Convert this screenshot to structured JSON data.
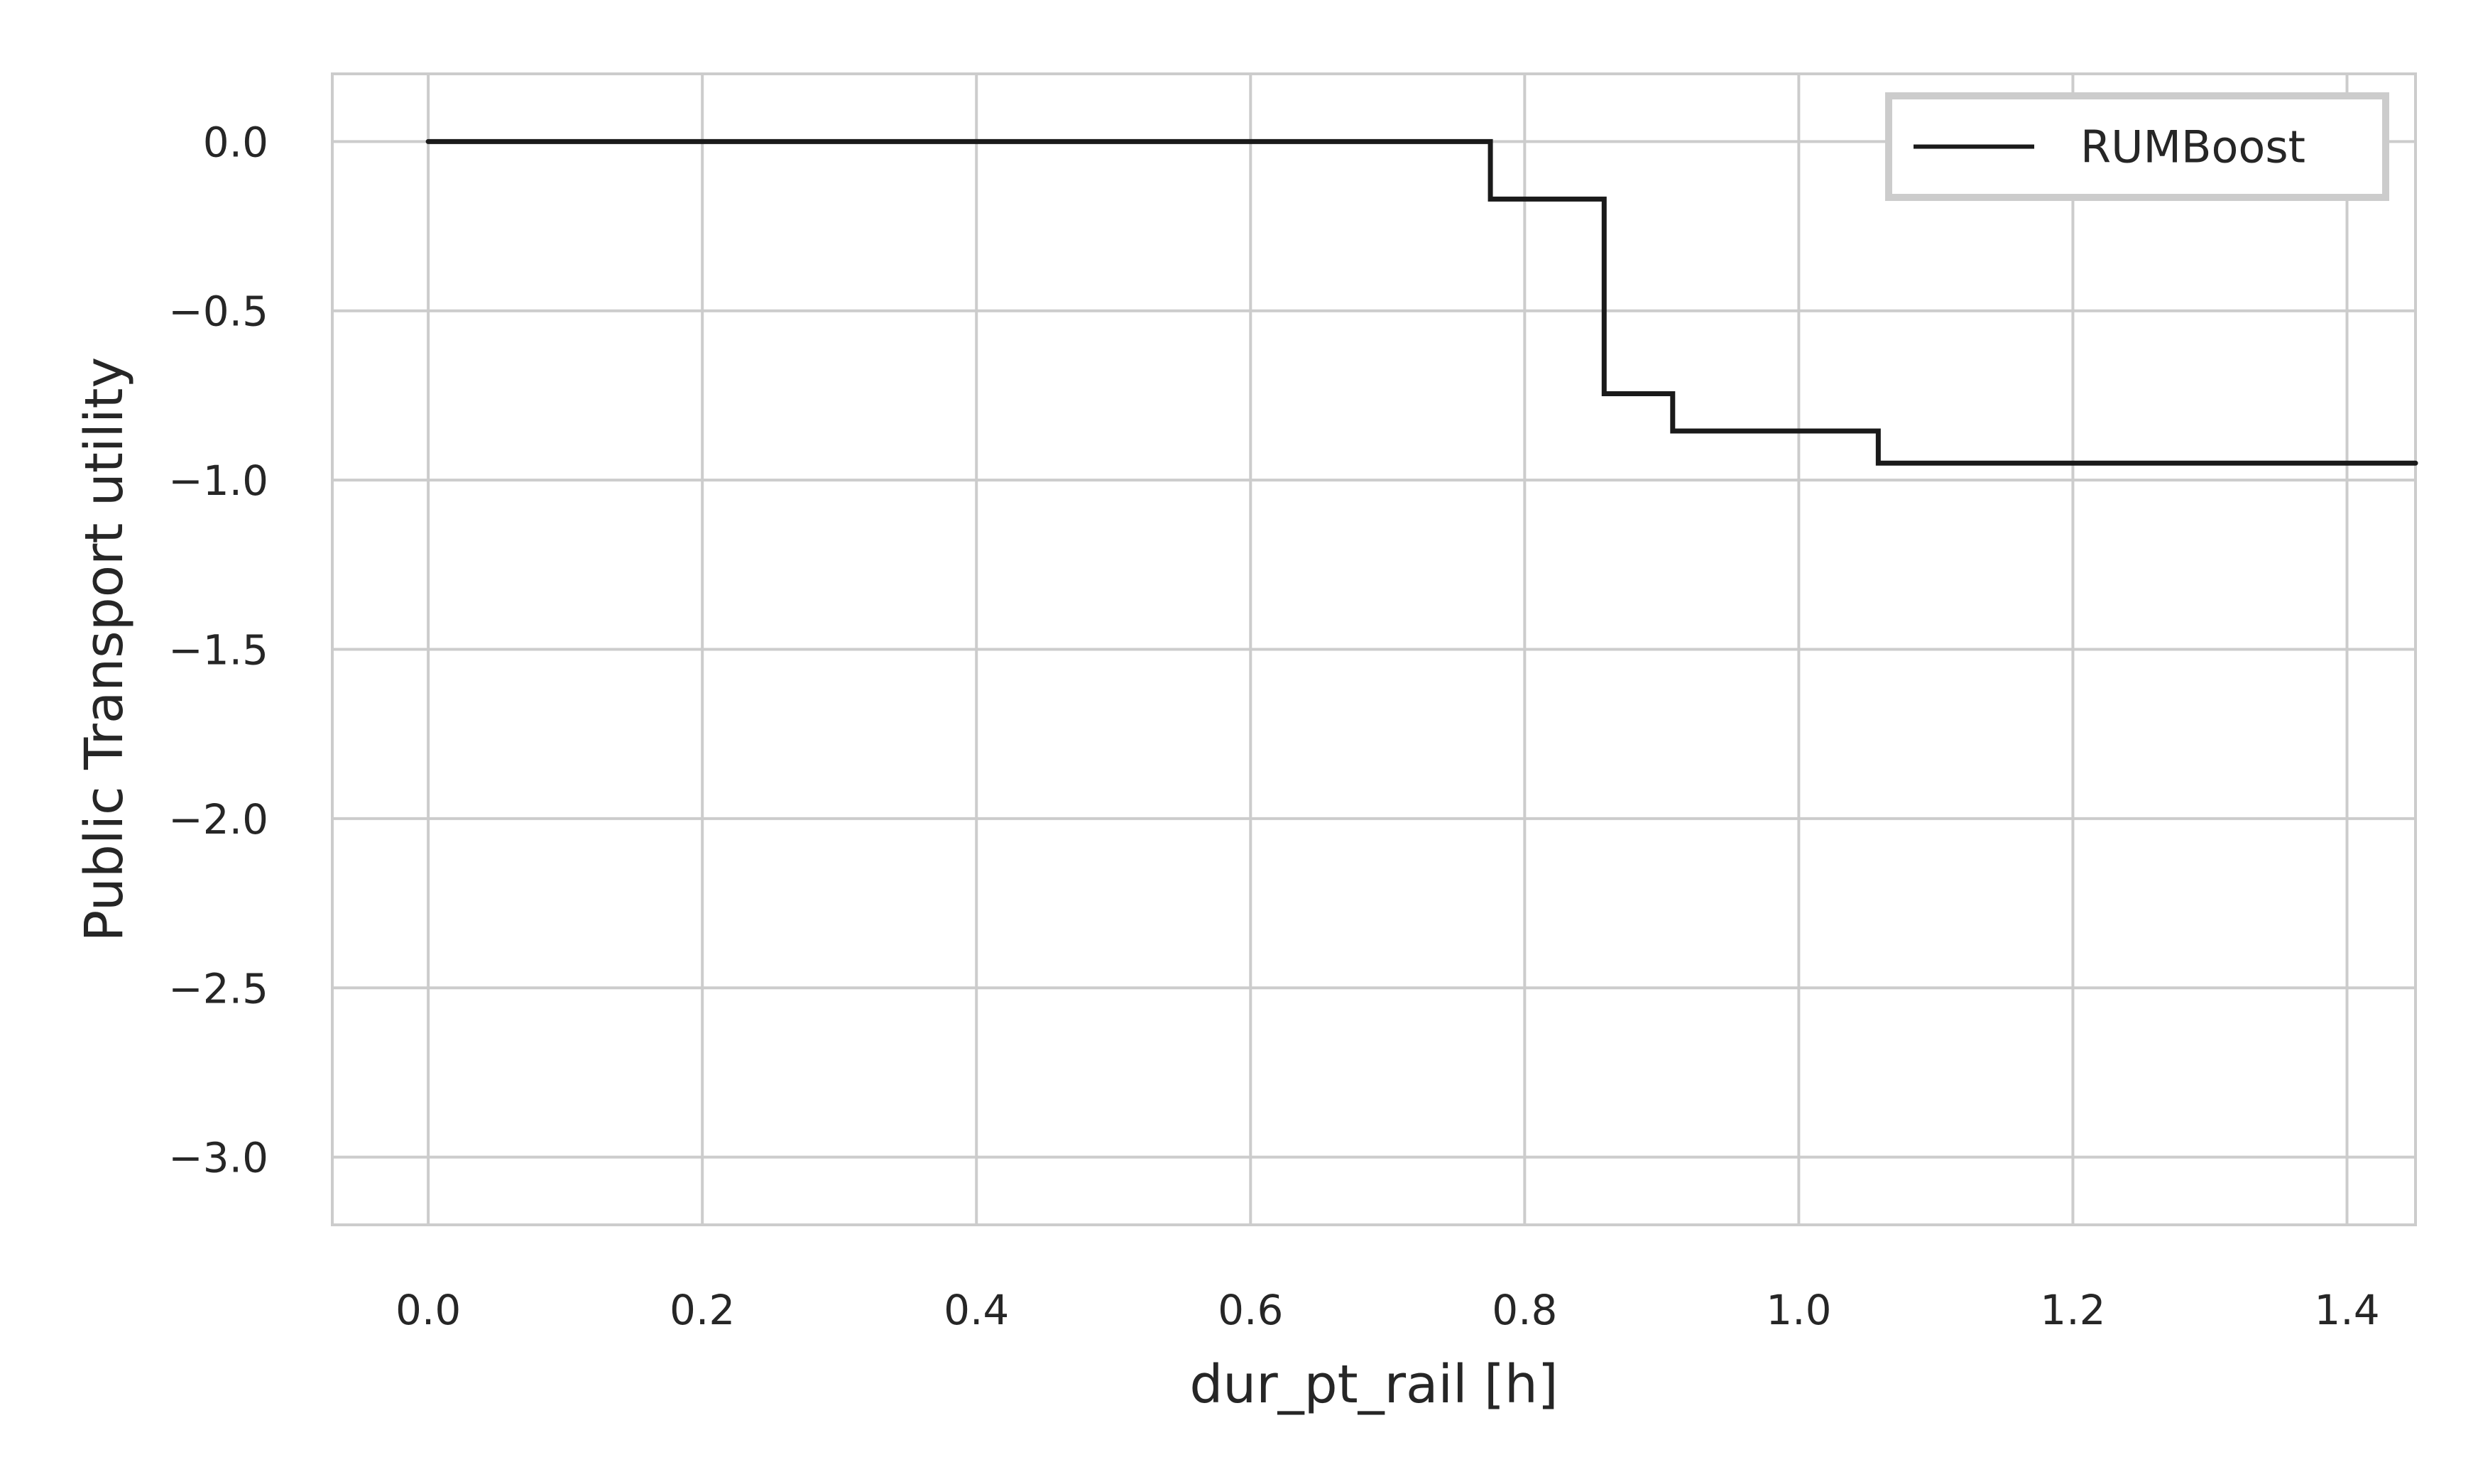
{
  "chart_data": {
    "type": "line",
    "step": "post",
    "title": "",
    "xlabel": "dur_pt_rail [h]",
    "ylabel": "Public Transport utility",
    "xlim": [
      -0.07,
      1.45
    ],
    "ylim": [
      -3.2,
      0.2
    ],
    "xticks": [
      0.0,
      0.2,
      0.4,
      0.6,
      0.8,
      1.0,
      1.2,
      1.4
    ],
    "xtick_labels": [
      "0.0",
      "0.2",
      "0.4",
      "0.6",
      "0.8",
      "1.0",
      "1.2",
      "1.4"
    ],
    "yticks": [
      0.0,
      -0.5,
      -1.0,
      -1.5,
      -2.0,
      -2.5,
      -3.0
    ],
    "ytick_labels": [
      "0.0",
      "−0.5",
      "−1.0",
      "−1.5",
      "−2.0",
      "−2.5",
      "−3.0"
    ],
    "grid": true,
    "legend_position": "upper right",
    "series": [
      {
        "name": "RUMBoost",
        "color": "#1a1a1a",
        "x": [
          0.0,
          0.775,
          0.858,
          0.908,
          1.058,
          1.45
        ],
        "y": [
          0.0,
          -0.17,
          -0.745,
          -0.855,
          -0.95,
          -0.95
        ]
      }
    ]
  }
}
